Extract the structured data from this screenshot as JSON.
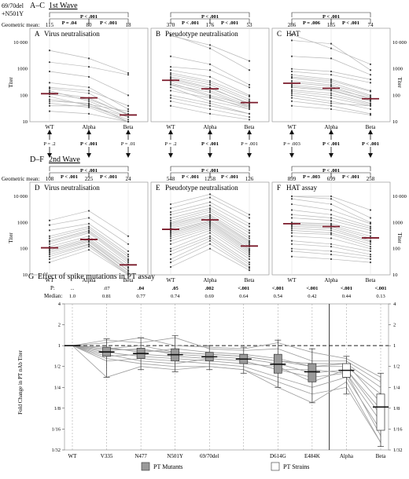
{
  "corner_label": [
    "69/70del",
    "+N501Y"
  ],
  "wave1": {
    "heading_prefix": "A–C",
    "heading_title": "1st Wave",
    "geo_mean_label": "Geometric mean:",
    "panels": [
      {
        "letter": "A",
        "title": "Virus neutralisation",
        "geo_means": [
          "115",
          "80",
          "18"
        ],
        "pvals": {
          "outer": "P < .001",
          "left": "P = .04",
          "right": "P < .001"
        },
        "series_means": [
          115,
          80,
          18
        ],
        "lines": [
          [
            130,
            80,
            18
          ],
          [
            200,
            150,
            40
          ],
          [
            1800,
            1200,
            600
          ],
          [
            5000,
            2500,
            700
          ],
          [
            90,
            40,
            15
          ],
          [
            60,
            50,
            10
          ],
          [
            300,
            200,
            30
          ],
          [
            40,
            40,
            12
          ],
          [
            110,
            70,
            20
          ],
          [
            25,
            20,
            10
          ],
          [
            150,
            60,
            15
          ],
          [
            800,
            500,
            100
          ],
          [
            70,
            45,
            25
          ],
          [
            180,
            120,
            18
          ],
          [
            50,
            35,
            10
          ]
        ]
      },
      {
        "letter": "B",
        "title": "Pseudotype neutralisation",
        "geo_means": [
          "370",
          "176",
          "53"
        ],
        "pvals": {
          "outer": "P < .001",
          "left": "P < .001",
          "right": "P < .001"
        },
        "series_means": [
          370,
          176,
          53
        ],
        "lines": [
          [
            18000,
            8000,
            2000
          ],
          [
            20000,
            6000,
            900
          ],
          [
            3000,
            1500,
            250
          ],
          [
            1200,
            900,
            200
          ],
          [
            900,
            500,
            100
          ],
          [
            600,
            300,
            70
          ],
          [
            500,
            250,
            60
          ],
          [
            400,
            180,
            50
          ],
          [
            350,
            150,
            40
          ],
          [
            300,
            100,
            40
          ],
          [
            250,
            90,
            30
          ],
          [
            200,
            60,
            30
          ],
          [
            150,
            80,
            35
          ],
          [
            100,
            50,
            20
          ],
          [
            80,
            40,
            20
          ],
          [
            60,
            30,
            15
          ],
          [
            40,
            20,
            12
          ],
          [
            700,
            350,
            90
          ],
          [
            450,
            200,
            45
          ],
          [
            260,
            130,
            35
          ]
        ]
      },
      {
        "letter": "C",
        "title": "HAT",
        "geo_means": [
          "286",
          "185",
          "74"
        ],
        "pvals": {
          "outer": "P < .001",
          "left": "P = .006",
          "right": "P < .001"
        },
        "series_means": [
          286,
          185,
          74
        ],
        "lines": [
          [
            20000,
            6000,
            1500
          ],
          [
            12000,
            9000,
            900
          ],
          [
            3000,
            2500,
            600
          ],
          [
            1000,
            800,
            400
          ],
          [
            800,
            600,
            300
          ],
          [
            600,
            400,
            150
          ],
          [
            450,
            300,
            100
          ],
          [
            350,
            250,
            90
          ],
          [
            250,
            180,
            80
          ],
          [
            200,
            150,
            60
          ],
          [
            160,
            120,
            50
          ],
          [
            120,
            80,
            40
          ],
          [
            100,
            60,
            30
          ],
          [
            80,
            50,
            40
          ],
          [
            60,
            40,
            20
          ],
          [
            500,
            350,
            140
          ],
          [
            300,
            220,
            70
          ],
          [
            220,
            160,
            65
          ],
          [
            140,
            100,
            45
          ],
          [
            40,
            30,
            18
          ]
        ]
      }
    ]
  },
  "between_pvals": [
    [
      "P = .2",
      "P < .001",
      "P = .01"
    ],
    [
      "P = .2",
      "P < .001",
      "P = .001"
    ],
    [
      "P = .003",
      "P < .001",
      "P < .001"
    ]
  ],
  "wave2": {
    "heading_prefix": "D–F",
    "heading_title": "2nd Wave",
    "geo_mean_label": "Geometric mean:",
    "panels": [
      {
        "letter": "D",
        "title": "Virus neutralisation",
        "geo_means": [
          "108",
          "225",
          "24"
        ],
        "pvals": {
          "outer": "P < .001",
          "left": "P < .001",
          "right": "P < .001"
        },
        "series_means": [
          108,
          225,
          24
        ],
        "lines": [
          [
            1200,
            2800,
            300
          ],
          [
            800,
            1500,
            150
          ],
          [
            500,
            900,
            80
          ],
          [
            300,
            700,
            60
          ],
          [
            200,
            500,
            40
          ],
          [
            150,
            400,
            30
          ],
          [
            120,
            300,
            25
          ],
          [
            100,
            250,
            20
          ],
          [
            80,
            200,
            15
          ],
          [
            60,
            150,
            12
          ],
          [
            40,
            120,
            10
          ],
          [
            30,
            90,
            10
          ],
          [
            250,
            600,
            50
          ],
          [
            180,
            450,
            35
          ],
          [
            90,
            220,
            18
          ],
          [
            70,
            180,
            14
          ],
          [
            50,
            140,
            11
          ]
        ]
      },
      {
        "letter": "E",
        "title": "Pseudotype neutralisation",
        "geo_means": [
          "548",
          "1258",
          "126"
        ],
        "pvals": {
          "outer": "P < .001",
          "left": "P < .001",
          "right": "P < .001"
        },
        "series_means": [
          548,
          1258,
          126
        ],
        "lines": [
          [
            5000,
            12000,
            2000
          ],
          [
            3500,
            9000,
            1500
          ],
          [
            2500,
            6000,
            900
          ],
          [
            2000,
            4500,
            700
          ],
          [
            1500,
            3500,
            500
          ],
          [
            1200,
            3000,
            400
          ],
          [
            1000,
            2500,
            300
          ],
          [
            900,
            2000,
            250
          ],
          [
            800,
            1800,
            200
          ],
          [
            700,
            1600,
            180
          ],
          [
            600,
            1400,
            160
          ],
          [
            500,
            1200,
            140
          ],
          [
            450,
            1100,
            120
          ],
          [
            400,
            1000,
            100
          ],
          [
            350,
            900,
            90
          ],
          [
            300,
            800,
            80
          ],
          [
            250,
            700,
            70
          ],
          [
            200,
            600,
            60
          ],
          [
            150,
            500,
            50
          ],
          [
            100,
            400,
            40
          ],
          [
            80,
            300,
            30
          ],
          [
            60,
            250,
            25
          ],
          [
            40,
            200,
            20
          ],
          [
            30,
            150,
            18
          ],
          [
            20,
            100,
            15
          ]
        ]
      },
      {
        "letter": "F",
        "title": "HAT assay",
        "geo_means": [
          "899",
          "699",
          "258"
        ],
        "pvals": {
          "outer": "P < .001",
          "left": "P = .003",
          "right": "P < .001"
        },
        "series_means": [
          899,
          699,
          258
        ],
        "lines": [
          [
            10000,
            10000,
            3000
          ],
          [
            10000,
            8000,
            1500
          ],
          [
            8000,
            5000,
            1000
          ],
          [
            5000,
            3000,
            900
          ],
          [
            3000,
            2000,
            700
          ],
          [
            2000,
            1500,
            600
          ],
          [
            1500,
            1200,
            500
          ],
          [
            1000,
            900,
            400
          ],
          [
            900,
            800,
            300
          ],
          [
            800,
            700,
            250
          ],
          [
            700,
            600,
            200
          ],
          [
            600,
            500,
            180
          ],
          [
            500,
            400,
            150
          ],
          [
            400,
            350,
            120
          ],
          [
            300,
            250,
            100
          ],
          [
            200,
            150,
            80
          ],
          [
            150,
            120,
            60
          ],
          [
            100,
            80,
            50
          ],
          [
            80,
            60,
            40
          ],
          [
            50,
            40,
            30
          ]
        ]
      }
    ]
  },
  "titer_axis": {
    "label": "Titer",
    "ticks": [
      "10",
      "100",
      "1000",
      "10 000"
    ],
    "ylim": [
      10,
      20000
    ],
    "log": true
  },
  "x_categories": [
    "WT",
    "Alpha",
    "Beta"
  ],
  "panel_g": {
    "heading_prefix": "G",
    "title": "Effect of spike mutations in PT assay",
    "p_label": "P:",
    "median_label": "Median:",
    "categories": [
      "WT",
      "V335",
      "N477",
      "N501Y",
      "69/70del",
      "69/70del+N501Y",
      "D614G",
      "E484K",
      "Alpha",
      "Beta"
    ],
    "x_tick_labels": [
      "WT",
      "V335",
      "N477",
      "N501Y",
      "69/70del",
      "D614G",
      "E484K",
      "Alpha",
      "Beta"
    ],
    "p_values": [
      "...",
      ".07",
      ".04",
      ".05",
      ".002",
      "<.001",
      "<.001",
      "<.001",
      "<.001",
      "<.001"
    ],
    "p_bold": [
      false,
      false,
      true,
      true,
      true,
      true,
      true,
      true,
      true,
      true
    ],
    "medians": [
      "1.0",
      "0.81",
      "0.77",
      "0.74",
      "0.69",
      "0.64",
      "0.54",
      "0.42",
      "0.44",
      "0.13"
    ],
    "median_values": [
      1.0,
      0.81,
      0.77,
      0.74,
      0.69,
      0.64,
      0.54,
      0.42,
      0.44,
      0.13
    ],
    "boxes": [
      {
        "q1": 1.0,
        "q3": 1.0,
        "wlo": 1.0,
        "whi": 1.0
      },
      {
        "q1": 0.7,
        "q3": 0.95,
        "wlo": 0.35,
        "whi": 1.25
      },
      {
        "q1": 0.65,
        "q3": 0.92,
        "wlo": 0.45,
        "whi": 1.3
      },
      {
        "q1": 0.6,
        "q3": 0.9,
        "wlo": 0.42,
        "whi": 1.4
      },
      {
        "q1": 0.6,
        "q3": 0.8,
        "wlo": 0.45,
        "whi": 1.0
      },
      {
        "q1": 0.55,
        "q3": 0.75,
        "wlo": 0.4,
        "whi": 0.95
      },
      {
        "q1": 0.4,
        "q3": 0.75,
        "wlo": 0.25,
        "whi": 1.2
      },
      {
        "q1": 0.3,
        "q3": 0.55,
        "wlo": 0.15,
        "whi": 0.9
      },
      {
        "q1": 0.35,
        "q3": 0.55,
        "wlo": 0.2,
        "whi": 0.7
      },
      {
        "q1": 0.06,
        "q3": 0.2,
        "wlo": 0.035,
        "whi": 0.4
      }
    ],
    "lines": [
      [
        1,
        0.9,
        0.85,
        0.8,
        0.75,
        0.7,
        0.6,
        0.5,
        0.55,
        0.15
      ],
      [
        1,
        0.7,
        0.75,
        0.7,
        0.65,
        0.6,
        0.45,
        0.35,
        0.4,
        0.08
      ],
      [
        1,
        1.2,
        1.1,
        1.3,
        0.9,
        0.85,
        0.9,
        0.6,
        0.6,
        0.3
      ],
      [
        1,
        0.35,
        0.5,
        0.45,
        0.5,
        0.45,
        0.3,
        0.2,
        0.25,
        0.04
      ],
      [
        1,
        0.85,
        0.9,
        0.75,
        0.7,
        0.65,
        0.55,
        0.4,
        0.45,
        0.12
      ],
      [
        1,
        0.95,
        0.8,
        0.9,
        0.8,
        0.75,
        0.65,
        0.5,
        0.5,
        0.2
      ],
      [
        1,
        0.6,
        0.65,
        0.6,
        0.55,
        0.5,
        0.35,
        0.25,
        0.35,
        0.06
      ],
      [
        1,
        1.1,
        1.3,
        1.0,
        0.95,
        0.9,
        1.1,
        0.8,
        0.65,
        0.35
      ],
      [
        1,
        0.8,
        0.7,
        0.65,
        0.6,
        0.55,
        0.5,
        0.3,
        0.45,
        0.1
      ],
      [
        1,
        0.75,
        0.6,
        0.55,
        0.65,
        0.6,
        0.45,
        0.45,
        0.4,
        0.05
      ],
      [
        1,
        0.9,
        1.0,
        0.8,
        0.75,
        0.7,
        0.6,
        0.55,
        0.55,
        0.25
      ],
      [
        1,
        0.65,
        0.55,
        0.5,
        0.5,
        0.45,
        0.25,
        0.15,
        0.3,
        0.04
      ]
    ],
    "ytick_labels": [
      "1/32",
      "1/16",
      "1/8",
      "1/4",
      "1/2",
      "1",
      "2",
      "4"
    ],
    "ylabel": "Fold Change in PT nAb Titer",
    "legend": {
      "mutants_label": "PT Mutants",
      "strains_label": "PT Strains",
      "mutants_color": "#9a9a9a",
      "strains_color": "#ffffff"
    }
  },
  "colors": {
    "mean_bar": "#7a1a2a",
    "line": "#b8b8b8",
    "dot": "#444444",
    "median": "#111111"
  }
}
